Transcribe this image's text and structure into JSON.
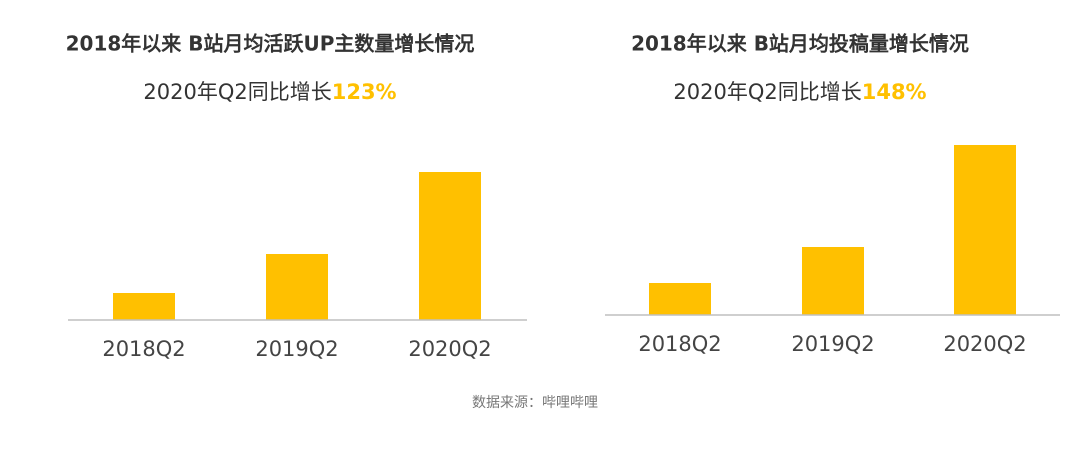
{
  "chart_data": [
    {
      "type": "bar",
      "title": "2018年以来 B站月均活跃UP主数量增长情况",
      "subtitle": "2020年Q2同比增长",
      "highlight": "123%",
      "categories": [
        "2018Q2",
        "2019Q2",
        "2020Q2"
      ],
      "values": [
        27,
        66,
        148
      ],
      "color": "#ffc000"
    },
    {
      "type": "bar",
      "title": "2018年以来 B站月均投稿量增长情况",
      "subtitle": "2020年Q2同比增长",
      "highlight": "148%",
      "categories": [
        "2018Q2",
        "2019Q2",
        "2020Q2"
      ],
      "values": [
        32,
        68,
        170
      ],
      "color": "#ffc000"
    }
  ],
  "source": "数据来源：哔哩哔哩"
}
